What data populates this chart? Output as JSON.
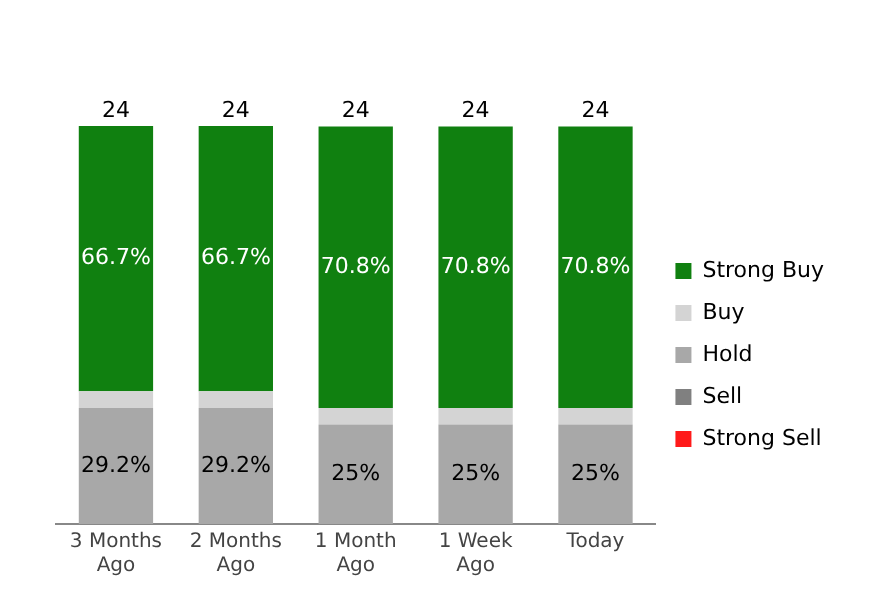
{
  "chart_data": {
    "type": "bar",
    "stacked": true,
    "categories": [
      "3 Months Ago",
      "2 Months Ago",
      "1 Month Ago",
      "1 Week Ago",
      "Today"
    ],
    "series": [
      {
        "name": "Strong Sell",
        "color": "#ff1a1a",
        "values": [
          null,
          null,
          null,
          null,
          null
        ]
      },
      {
        "name": "Sell",
        "color": "#808080",
        "values": [
          null,
          null,
          null,
          null,
          null
        ]
      },
      {
        "name": "Hold",
        "color": "#a8a8a8",
        "values": [
          29.2,
          29.2,
          25,
          25,
          25
        ],
        "value_labels": [
          "29.2%",
          "29.2%",
          "25%",
          "25%",
          "25%"
        ]
      },
      {
        "name": "Buy",
        "color": "#d4d4d4",
        "values": [
          4.2,
          4.2,
          4.2,
          4.2,
          4.2
        ]
      },
      {
        "name": "Strong Buy",
        "color": "#108010",
        "values": [
          66.7,
          66.7,
          70.8,
          70.8,
          70.8
        ],
        "value_labels": [
          "66.7%",
          "66.7%",
          "70.8%",
          "70.8%",
          "70.8%"
        ]
      }
    ],
    "annotations": [
      {
        "text": "24",
        "x": "3 Months Ago",
        "y": 100
      },
      {
        "text": "24",
        "x": "2 Months Ago",
        "y": 100
      },
      {
        "text": "24",
        "x": "1 Month Ago",
        "y": 100
      },
      {
        "text": "24",
        "x": "1 Week Ago",
        "y": 100
      },
      {
        "text": "24",
        "x": "Today",
        "y": 100
      }
    ],
    "tick_labels": "x",
    "grid": false,
    "legend": "right"
  }
}
